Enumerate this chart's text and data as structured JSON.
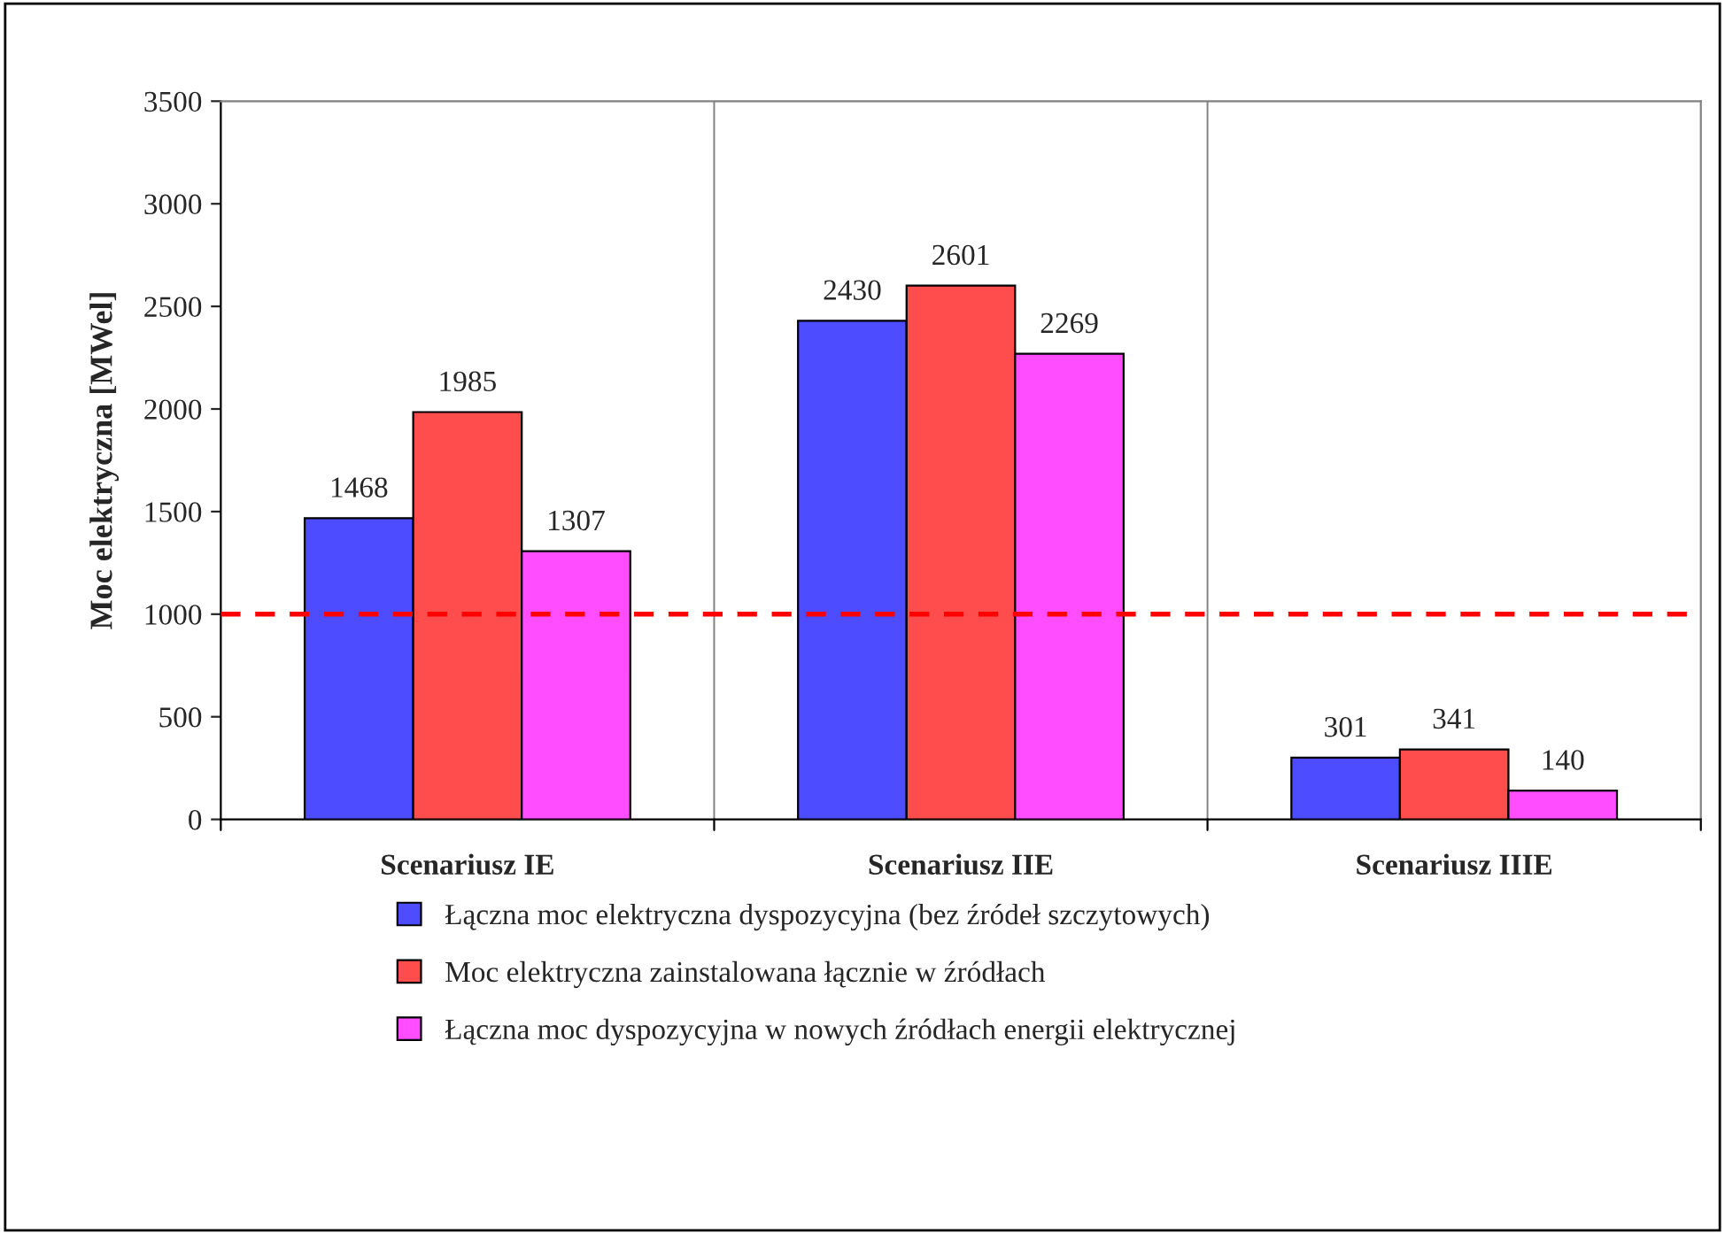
{
  "chart_data": {
    "type": "bar",
    "ylabel": "Moc elektryczna [MWel]",
    "categories": [
      "Scenariusz IE",
      "Scenariusz IIE",
      "Scenariusz IIIE"
    ],
    "series": [
      {
        "name": "Łączna moc elektryczna dyspozycyjna (bez źródeł szczytowych)",
        "color": "#4d4dff",
        "values": [
          1468,
          2430,
          301
        ]
      },
      {
        "name": "Moc elektryczna zainstalowana łącznie w źródłach",
        "color": "#ff4d4d",
        "values": [
          1985,
          2601,
          341
        ]
      },
      {
        "name": "Łączna moc dyspozycyjna w nowych źródłach energii elektrycznej",
        "color": "#ff4dff",
        "values": [
          1307,
          2269,
          140
        ]
      }
    ],
    "ylim": [
      0,
      3500
    ],
    "yticks": [
      0,
      500,
      1000,
      1500,
      2000,
      2500,
      3000,
      3500
    ],
    "ref_lines": [
      {
        "axis": "y",
        "value": 1000,
        "color": "#ff0000",
        "line_style": "dashed"
      }
    ],
    "data_labels": true,
    "grid": "x",
    "legend": "bottom"
  }
}
